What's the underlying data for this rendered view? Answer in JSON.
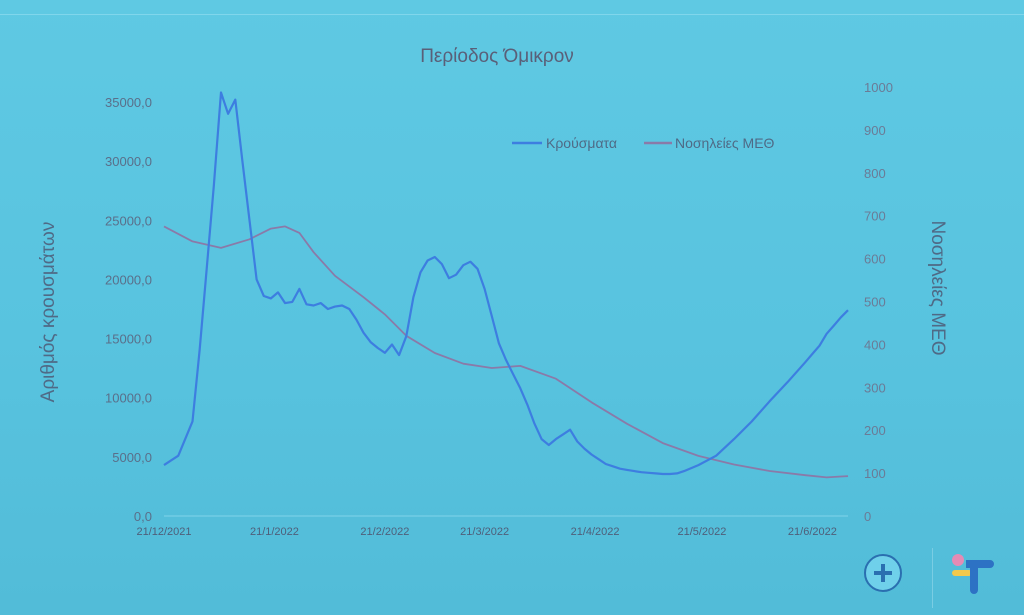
{
  "chart_data": {
    "type": "line",
    "title": "Περίοδος Όμικρον",
    "ylabel": "Αριθμός κρουσμάτων",
    "y2label": "Νοσηλείες ΜΕΘ",
    "ylim": [
      0,
      35000
    ],
    "y2lim": [
      0,
      1000
    ],
    "yticks": [
      "0,0",
      "5000,0",
      "10000,0",
      "15000,0",
      "20000,0",
      "25000,0",
      "30000,0",
      "35000,0"
    ],
    "y2ticks": [
      "0",
      "100",
      "200",
      "300",
      "400",
      "500",
      "600",
      "700",
      "800",
      "900",
      "1000"
    ],
    "xtick_labels": [
      "21/12/2021",
      "21/1/2022",
      "21/2/2022",
      "21/3/2022",
      "21/4/2022",
      "21/5/2022",
      "21/6/2022"
    ],
    "legend_position": "top-right",
    "series": [
      {
        "name": "Κρούσματα",
        "axis": "left",
        "color": "#3d7ee0",
        "x": [
          0,
          4,
          8,
          10,
          12,
          14,
          16,
          18,
          20,
          22,
          24,
          26,
          28,
          30,
          32,
          34,
          36,
          38,
          40,
          42,
          44,
          46,
          48,
          50,
          52,
          54,
          56,
          58,
          60,
          62,
          64,
          66,
          68,
          70,
          72,
          74,
          76,
          78,
          80,
          82,
          84,
          86,
          88,
          90,
          92,
          94,
          96,
          98,
          100,
          102,
          104,
          106,
          108,
          110,
          112,
          114,
          116,
          118,
          120,
          122,
          124,
          126,
          128,
          130,
          132,
          134,
          136,
          138,
          140,
          142,
          144,
          146,
          150,
          155,
          160,
          165,
          170,
          175,
          180,
          182,
          184,
          186,
          188,
          190,
          192
        ],
        "values": [
          4300,
          5100,
          8000,
          14000,
          21000,
          28000,
          35800,
          34000,
          35200,
          30000,
          25000,
          20000,
          18600,
          18400,
          18900,
          18000,
          18100,
          19200,
          17900,
          17800,
          18000,
          17500,
          17700,
          17800,
          17500,
          16600,
          15500,
          14700,
          14200,
          13800,
          14500,
          13600,
          15200,
          18500,
          20600,
          21600,
          21900,
          21300,
          20100,
          20400,
          21200,
          21500,
          20900,
          19200,
          16900,
          14600,
          13200,
          12000,
          10800,
          9400,
          7800,
          6500,
          6000,
          6500,
          6900,
          7300,
          6300,
          5700,
          5200,
          4800,
          4400,
          4200,
          4000,
          3900,
          3800,
          3700,
          3650,
          3600,
          3550,
          3550,
          3600,
          3800,
          4300,
          5100,
          6500,
          8000,
          9700,
          11300,
          13000,
          13700,
          14400,
          15400,
          16100,
          16800,
          17400
        ]
      },
      {
        "name": "Νοσηλείες ΜΕΘ",
        "axis": "right",
        "color": "#8a7aa8",
        "x": [
          0,
          8,
          16,
          24,
          30,
          34,
          38,
          42,
          48,
          56,
          62,
          68,
          76,
          84,
          92,
          100,
          110,
          120,
          130,
          140,
          150,
          160,
          170,
          180,
          186,
          190,
          192
        ],
        "values": [
          675,
          640,
          625,
          645,
          670,
          675,
          660,
          615,
          560,
          510,
          470,
          420,
          380,
          355,
          345,
          350,
          320,
          265,
          215,
          170,
          140,
          120,
          105,
          95,
          90,
          92,
          93
        ]
      }
    ]
  },
  "logos": {
    "left_emblem": "greek-state-emblem",
    "right_logo": "eody-logo"
  }
}
